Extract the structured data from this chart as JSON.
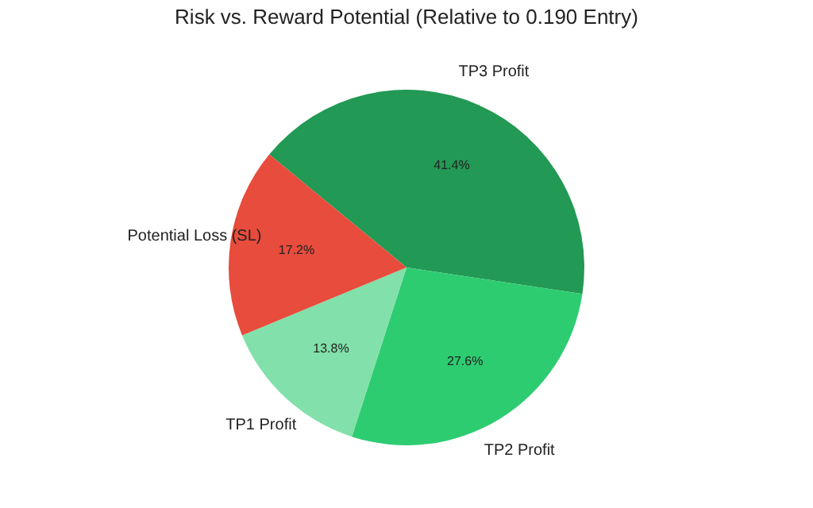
{
  "chart_data": {
    "type": "pie",
    "title": "Risk vs. Reward Potential (Relative to 0.190 Entry)",
    "categories": [
      "TP3 Profit",
      "TP2 Profit",
      "TP1 Profit",
      "Potential Loss (SL)"
    ],
    "values": [
      41.4,
      27.6,
      13.8,
      17.2
    ],
    "colors": [
      "#229954",
      "#2ecc71",
      "#82e0aa",
      "#e74c3c"
    ],
    "value_labels": [
      "41.4%",
      "27.6%",
      "13.8%",
      "17.2%"
    ],
    "legend": false
  }
}
